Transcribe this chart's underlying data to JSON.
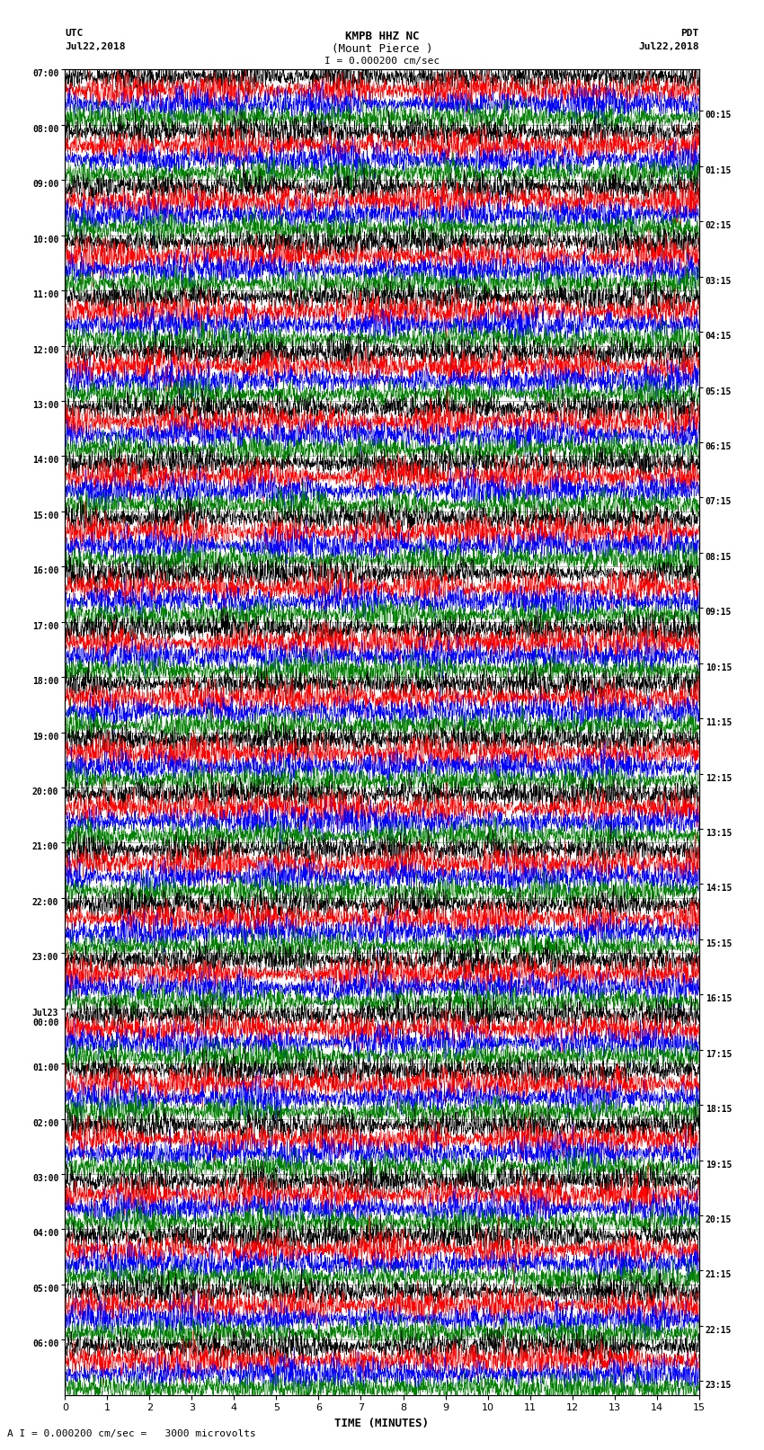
{
  "title_line1": "KMPB HHZ NC",
  "title_line2": "(Mount Pierce )",
  "scale_label": "I = 0.000200 cm/sec",
  "bottom_label": "A I = 0.000200 cm/sec =   3000 microvolts",
  "xlabel": "TIME (MINUTES)",
  "left_header": "UTC",
  "left_date": "Jul22,2018",
  "right_header": "PDT",
  "right_date": "Jul22,2018",
  "left_times": [
    "07:00",
    "08:00",
    "09:00",
    "10:00",
    "11:00",
    "12:00",
    "13:00",
    "14:00",
    "15:00",
    "16:00",
    "17:00",
    "18:00",
    "19:00",
    "20:00",
    "21:00",
    "22:00",
    "23:00",
    "Jul23\n00:00",
    "01:00",
    "02:00",
    "03:00",
    "04:00",
    "05:00",
    "06:00"
  ],
  "right_times": [
    "00:15",
    "01:15",
    "02:15",
    "03:15",
    "04:15",
    "05:15",
    "06:15",
    "07:15",
    "08:15",
    "09:15",
    "10:15",
    "11:15",
    "12:15",
    "13:15",
    "14:15",
    "15:15",
    "16:15",
    "17:15",
    "18:15",
    "19:15",
    "20:15",
    "21:15",
    "22:15",
    "23:15"
  ],
  "n_rows": 24,
  "traces_per_row": 4,
  "colors": [
    "black",
    "red",
    "blue",
    "green"
  ],
  "bg_color": "white",
  "figsize": [
    8.5,
    16.13
  ],
  "dpi": 100,
  "xmin": 0,
  "xmax": 15,
  "xticks": [
    0,
    1,
    2,
    3,
    4,
    5,
    6,
    7,
    8,
    9,
    10,
    11,
    12,
    13,
    14,
    15
  ]
}
